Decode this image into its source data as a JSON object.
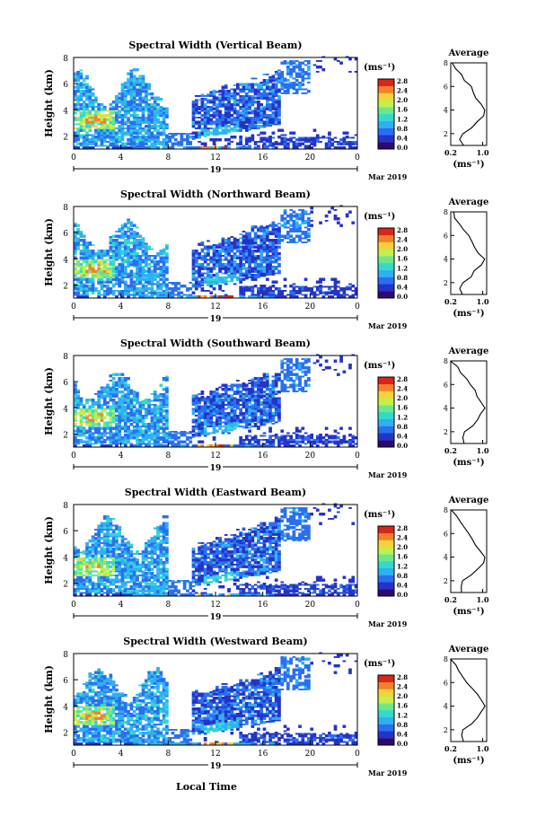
{
  "common": {
    "y_label": "Height (km)",
    "y_ticks": [
      "2",
      "4",
      "6",
      "8"
    ],
    "x_ticks": [
      "0",
      "4",
      "8",
      "12",
      "16",
      "20",
      "0"
    ],
    "date_day": "19",
    "date_month": "Mar 2019",
    "x_label": "Local Time",
    "units": "(ms⁻¹)",
    "colorbar_ticks": [
      "0.0",
      "0.4",
      "0.8",
      "1.2",
      "1.6",
      "2.0",
      "2.4",
      "2.8"
    ],
    "avg_title": "Average",
    "avg_x_ticks": [
      "0.2",
      "1.0"
    ],
    "avg_units": "(ms⁻¹)"
  },
  "colors": {
    "scale": [
      "#2b0a6e",
      "#2433c8",
      "#2a6ff0",
      "#2fb0f2",
      "#33d8d0",
      "#6ce88a",
      "#c4ee4a",
      "#f5d23a",
      "#f4812a",
      "#dc2418"
    ]
  },
  "chart_data": [
    {
      "type": "heatmap",
      "title": "Spectral Width (Vertical Beam)",
      "xlabel": "",
      "ylabel": "Height (km)",
      "xlim": [
        0,
        24
      ],
      "ylim": [
        1,
        8
      ],
      "colorbar": {
        "label": "(ms⁻¹)",
        "range": [
          0.0,
          2.8
        ]
      },
      "average_profile": {
        "title": "Average",
        "xlabel": "(ms⁻¹)",
        "xlim": [
          0.2,
          1.1
        ],
        "height_km": [
          1.0,
          1.5,
          2.0,
          2.5,
          3.0,
          3.5,
          4.0,
          4.5,
          5.0,
          5.5,
          6.0,
          6.5,
          7.0,
          7.5,
          8.0
        ],
        "width": [
          0.55,
          0.45,
          0.5,
          0.75,
          0.85,
          1.0,
          1.05,
          0.95,
          0.85,
          0.75,
          0.7,
          0.55,
          0.45,
          0.35,
          0.25
        ]
      }
    },
    {
      "type": "heatmap",
      "title": "Spectral Width (Northward Beam)",
      "xlabel": "",
      "ylabel": "Height (km)",
      "xlim": [
        0,
        24
      ],
      "ylim": [
        1,
        8
      ],
      "colorbar": {
        "label": "(ms⁻¹)",
        "range": [
          0.0,
          2.8
        ]
      },
      "average_profile": {
        "title": "Average",
        "xlabel": "(ms⁻¹)",
        "xlim": [
          0.2,
          1.1
        ],
        "height_km": [
          1.0,
          1.5,
          2.0,
          2.5,
          3.0,
          3.5,
          4.0,
          4.5,
          5.0,
          5.5,
          6.0,
          6.5,
          7.0,
          7.5,
          8.0
        ],
        "width": [
          0.5,
          0.45,
          0.5,
          0.7,
          0.8,
          0.95,
          1.05,
          0.9,
          0.8,
          0.75,
          0.65,
          0.5,
          0.4,
          0.3,
          0.25
        ]
      }
    },
    {
      "type": "heatmap",
      "title": "Spectral Width (Southward Beam)",
      "xlabel": "",
      "ylabel": "Height (km)",
      "xlim": [
        0,
        24
      ],
      "ylim": [
        1,
        8
      ],
      "colorbar": {
        "label": "(ms⁻¹)",
        "range": [
          0.0,
          2.8
        ]
      },
      "average_profile": {
        "title": "Average",
        "xlabel": "(ms⁻¹)",
        "xlim": [
          0.2,
          1.1
        ],
        "height_km": [
          1.0,
          1.5,
          2.0,
          2.5,
          3.0,
          3.5,
          4.0,
          4.5,
          5.0,
          5.5,
          6.0,
          6.5,
          7.0,
          7.5,
          8.0
        ],
        "width": [
          0.55,
          0.5,
          0.55,
          0.75,
          0.85,
          0.95,
          1.05,
          0.95,
          0.85,
          0.8,
          0.7,
          0.6,
          0.45,
          0.35,
          0.2
        ]
      }
    },
    {
      "type": "heatmap",
      "title": "Spectral Width (Eastward Beam)",
      "xlabel": "",
      "ylabel": "Height (km)",
      "xlim": [
        0,
        24
      ],
      "ylim": [
        1,
        8
      ],
      "colorbar": {
        "label": "(ms⁻¹)",
        "range": [
          0.0,
          2.8
        ]
      },
      "average_profile": {
        "title": "Average",
        "xlabel": "(ms⁻¹)",
        "xlim": [
          0.2,
          1.1
        ],
        "height_km": [
          1.0,
          1.5,
          2.0,
          2.5,
          3.0,
          3.5,
          4.0,
          4.5,
          5.0,
          5.5,
          6.0,
          6.5,
          7.0,
          7.5,
          8.0
        ],
        "width": [
          0.5,
          0.45,
          0.5,
          0.72,
          0.85,
          1.0,
          1.05,
          0.92,
          0.82,
          0.75,
          0.65,
          0.55,
          0.42,
          0.32,
          0.22
        ]
      }
    },
    {
      "type": "heatmap",
      "title": "Spectral Width (Westward Beam)",
      "xlabel": "Local Time",
      "ylabel": "Height (km)",
      "xlim": [
        0,
        24
      ],
      "ylim": [
        1,
        8
      ],
      "colorbar": {
        "label": "(ms⁻¹)",
        "range": [
          0.0,
          2.8
        ]
      },
      "average_profile": {
        "title": "Average",
        "xlabel": "(ms⁻¹)",
        "xlim": [
          0.2,
          1.1
        ],
        "height_km": [
          1.0,
          1.5,
          2.0,
          2.5,
          3.0,
          3.5,
          4.0,
          4.5,
          5.0,
          5.5,
          6.0,
          6.5,
          7.0,
          7.5,
          8.0
        ],
        "width": [
          0.5,
          0.45,
          0.5,
          0.75,
          0.85,
          0.98,
          1.05,
          0.95,
          0.85,
          0.72,
          0.62,
          0.5,
          0.4,
          0.3,
          0.22
        ]
      }
    }
  ]
}
